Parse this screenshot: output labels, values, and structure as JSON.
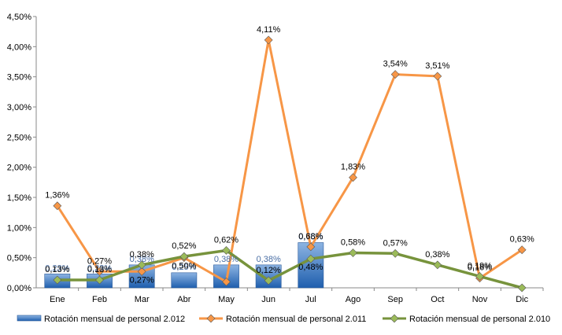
{
  "chart_data": {
    "type": "bar+line",
    "categories": [
      "Ene",
      "Feb",
      "Mar",
      "Abr",
      "May",
      "Jun",
      "Jul",
      "Ago",
      "Sep",
      "Oct",
      "Nov",
      "Dic"
    ],
    "series": [
      {
        "name": "Rotación mensual  de personal 2.012",
        "kind": "bar",
        "color": "#3a78c4",
        "label_color": "#4a6fa5",
        "values": [
          0.23,
          0.23,
          0.38,
          0.25,
          0.38,
          0.38,
          0.75,
          null,
          null,
          null,
          null,
          null
        ],
        "labels": [
          "0,23%",
          "0,23%",
          "0,38%",
          "0,25%",
          "0,38%",
          "0,38%",
          "0,75%",
          null,
          null,
          null,
          null,
          null
        ]
      },
      {
        "name": "Rotación mensual  de personal 2.011",
        "kind": "line",
        "color": "#f79646",
        "marker_color": "#f79646",
        "label_color": "#000000",
        "values": [
          1.36,
          0.27,
          0.27,
          0.5,
          0.1,
          4.11,
          0.68,
          1.83,
          3.54,
          3.51,
          0.16,
          0.63
        ],
        "labels": [
          "1,36%",
          "0,27%",
          "0,27%",
          "0,50%",
          null,
          "4,11%",
          "0,68%",
          "1,83%",
          "3,54%",
          "3,51%",
          "0,16%",
          "0,63%"
        ]
      },
      {
        "name": "Rotación mensual  de personal 2.010",
        "kind": "line",
        "color": "#77933c",
        "marker_color": "#9bbb59",
        "label_color": "#000000",
        "values": [
          0.13,
          0.13,
          0.38,
          0.52,
          0.62,
          0.12,
          0.48,
          0.58,
          0.57,
          0.38,
          0.19,
          0.0
        ],
        "labels": [
          "0,13%",
          "0,13%",
          "0,38%",
          "0,52%",
          "0,62%",
          "0,12%",
          "0,48%",
          "0,58%",
          "0,57%",
          "0,38%",
          "0,19%",
          null
        ]
      }
    ],
    "y_ticks": [
      "0,00%",
      "0,50%",
      "1,00%",
      "1,50%",
      "2,00%",
      "2,50%",
      "3,00%",
      "3,50%",
      "4,00%",
      "4,50%"
    ],
    "ylim": [
      0,
      4.5
    ],
    "grid": false,
    "legend_position": "bottom"
  }
}
